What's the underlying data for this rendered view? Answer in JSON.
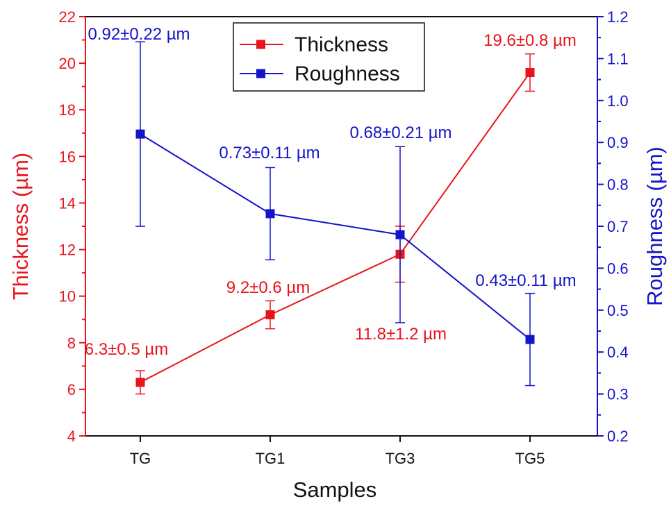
{
  "chart_data": {
    "type": "line",
    "categories": [
      "TG",
      "TG1",
      "TG3",
      "TG5"
    ],
    "xlabel": "Samples",
    "y_left": {
      "label": "Thickness (µm)",
      "range": [
        4,
        22
      ],
      "ticks": [
        "4",
        "6",
        "8",
        "10",
        "12",
        "14",
        "16",
        "18",
        "20",
        "22"
      ],
      "color": "#e8141c"
    },
    "y_right": {
      "label": "Roughness (µm)",
      "range": [
        0.2,
        1.2
      ],
      "ticks": [
        "0.2",
        "0.3",
        "0.4",
        "0.5",
        "0.6",
        "0.7",
        "0.8",
        "0.9",
        "1.0",
        "1.1",
        "1.2"
      ],
      "color": "#1414c8"
    },
    "series": [
      {
        "name": "Thickness",
        "axis": "left",
        "color": "#e8141c",
        "values": [
          6.3,
          9.2,
          11.8,
          19.6
        ],
        "errors": [
          0.5,
          0.6,
          1.2,
          0.8
        ],
        "labels": [
          "6.3±0.5 µm",
          "9.2±0.6 µm",
          "11.8±1.2 µm",
          "19.6±0.8 µm"
        ]
      },
      {
        "name": "Roughness",
        "axis": "right",
        "color": "#1414c8",
        "values": [
          0.92,
          0.73,
          0.68,
          0.43
        ],
        "errors": [
          0.22,
          0.11,
          0.21,
          0.11
        ],
        "labels": [
          "0.92±0.22 µm",
          "0.73±0.11 µm",
          "0.68±0.21 µm",
          "0.43±0.11 µm"
        ]
      }
    ],
    "legend": "top-center",
    "grid": false
  }
}
